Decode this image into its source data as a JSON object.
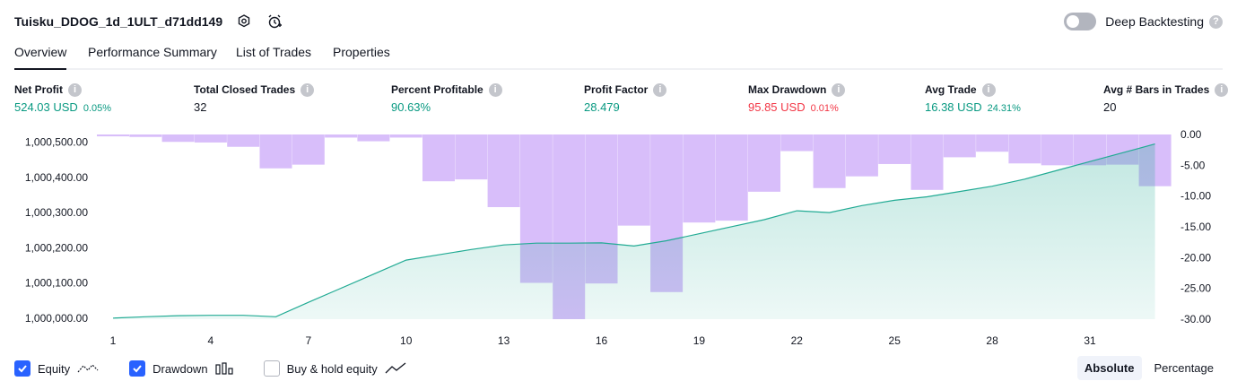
{
  "header": {
    "title": "Tuisku_DDOG_1d_1ULT_d71dd149",
    "deep_backtesting_label": "Deep Backtesting",
    "help_glyph": "?"
  },
  "tabs": [
    {
      "label": "Overview",
      "active": true
    },
    {
      "label": "Performance Summary",
      "active": false
    },
    {
      "label": "List of Trades",
      "active": false
    },
    {
      "label": "Properties",
      "active": false
    }
  ],
  "metrics": [
    {
      "label": "Net Profit",
      "value": "524.03 USD",
      "pct": "0.05%",
      "color": "green"
    },
    {
      "label": "Total Closed Trades",
      "value": "32",
      "pct": "",
      "color": "dark"
    },
    {
      "label": "Percent Profitable",
      "value": "90.63%",
      "pct": "",
      "color": "green"
    },
    {
      "label": "Profit Factor",
      "value": "28.479",
      "pct": "",
      "color": "green"
    },
    {
      "label": "Max Drawdown",
      "value": "95.85 USD",
      "pct": "0.01%",
      "color": "red"
    },
    {
      "label": "Avg Trade",
      "value": "16.38 USD",
      "pct": "24.31%",
      "color": "green"
    },
    {
      "label": "Avg # Bars in Trades",
      "value": "20",
      "pct": "",
      "color": "dark"
    }
  ],
  "chart_data": {
    "type": "line",
    "x": [
      1,
      2,
      3,
      4,
      5,
      6,
      7,
      8,
      9,
      10,
      11,
      12,
      13,
      14,
      15,
      16,
      17,
      18,
      19,
      20,
      21,
      22,
      23,
      24,
      25,
      26,
      27,
      28,
      29,
      30,
      31,
      32,
      33
    ],
    "x_ticks": [
      "1",
      "4",
      "7",
      "10",
      "13",
      "16",
      "19",
      "22",
      "25",
      "28",
      "31"
    ],
    "x_tick_values": [
      1,
      4,
      7,
      10,
      13,
      16,
      19,
      22,
      25,
      28,
      31
    ],
    "y_left_ticks": [
      "1,000,000.00",
      "1,000,100.00",
      "1,000,200.00",
      "1,000,300.00",
      "1,000,400.00",
      "1,000,500.00"
    ],
    "y_left_tick_values": [
      1000000,
      1000100,
      1000200,
      1000300,
      1000400,
      1000500
    ],
    "y_left_range": [
      999997,
      1000522
    ],
    "y_right_ticks": [
      "0.00",
      "-5.00",
      "-10.00",
      "-15.00",
      "-20.00",
      "-25.00",
      "-30.00"
    ],
    "y_right_tick_values": [
      0,
      -5,
      -10,
      -15,
      -20,
      -25,
      -30
    ],
    "y_right_range": [
      -30,
      0
    ],
    "series": [
      {
        "name": "Equity",
        "kind": "area",
        "values": [
          1000000,
          1000004,
          1000007,
          1000008,
          1000008,
          1000004,
          1000045,
          1000085,
          1000125,
          1000165,
          1000180,
          1000195,
          1000208,
          1000213,
          1000213,
          1000214,
          1000205,
          1000220,
          1000240,
          1000260,
          1000280,
          1000305,
          1000300,
          1000320,
          1000335,
          1000345,
          1000360,
          1000375,
          1000395,
          1000420,
          1000445,
          1000470,
          1000495
        ],
        "color": "#22ab94"
      },
      {
        "name": "Drawdown",
        "kind": "bar",
        "values": [
          -0.3,
          -0.4,
          -1.2,
          -1.3,
          -2,
          -5.5,
          -4.9,
          -0.5,
          -1.1,
          -0.5,
          -7.6,
          -7.3,
          -11.8,
          -24.1,
          -30,
          -24.2,
          -14.8,
          -25.6,
          -14.3,
          -14,
          -9.3,
          -2.7,
          -8.7,
          -6.8,
          -4.8,
          -9,
          -3.7,
          -2.8,
          -4.7,
          -5,
          -5,
          -4.9,
          -8.4
        ],
        "color": "#c9a5f8"
      }
    ]
  },
  "legend": [
    {
      "label": "Equity",
      "checked": true,
      "icon": "equity-line-icon"
    },
    {
      "label": "Drawdown",
      "checked": true,
      "icon": "drawdown-bars-icon"
    },
    {
      "label": "Buy & hold equity",
      "checked": false,
      "icon": "buy-hold-line-icon"
    }
  ],
  "modes": [
    {
      "label": "Absolute",
      "active": true
    },
    {
      "label": "Percentage",
      "active": false
    }
  ]
}
